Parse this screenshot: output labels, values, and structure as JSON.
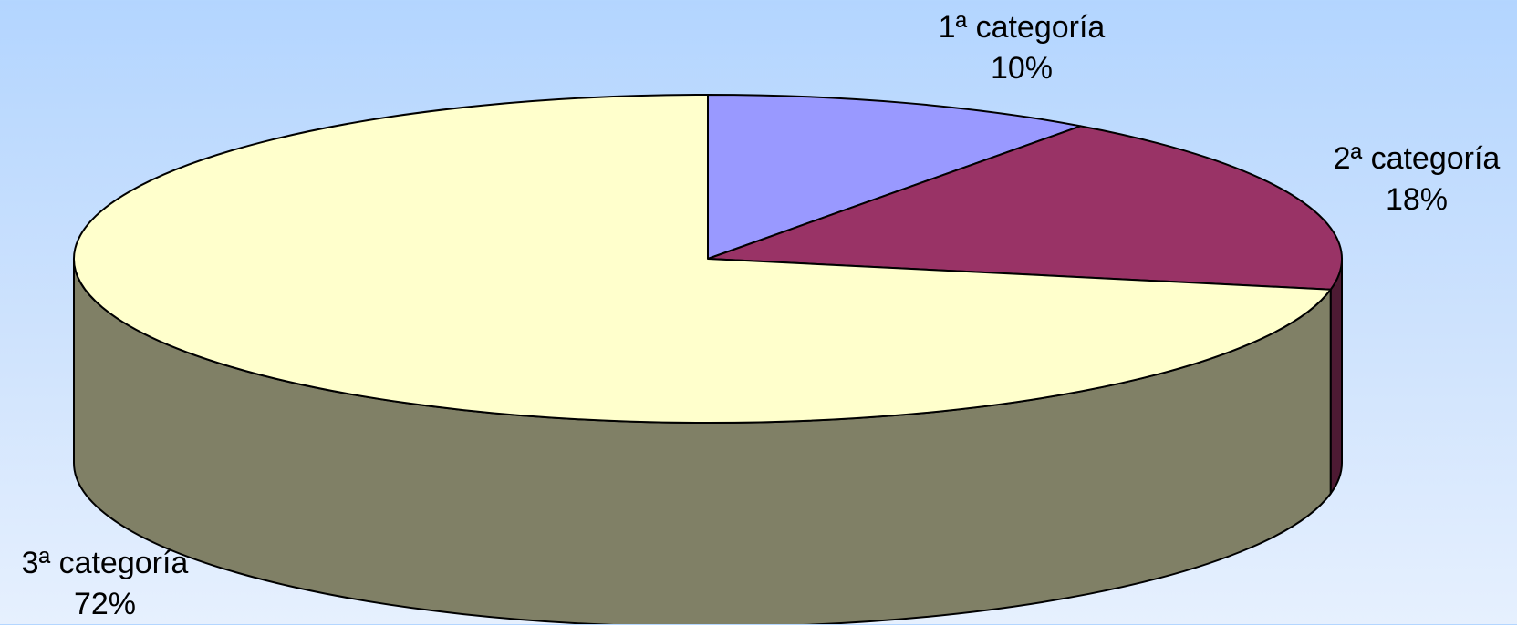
{
  "chart_data": {
    "type": "pie",
    "title": "",
    "three_d": true,
    "slices": [
      {
        "label": "1ª categoría",
        "value": 10,
        "value_label": "10%",
        "color": "#9999ff",
        "side_color": "#5a5ab0"
      },
      {
        "label": "2ª categoría",
        "value": 18,
        "value_label": "18%",
        "color": "#993366",
        "side_color": "#4d1a33"
      },
      {
        "label": "3ª categoría",
        "value": 72,
        "value_label": "72%",
        "color": "#ffffcc",
        "side_color": "#808066"
      }
    ],
    "start_angle": "12 o'clock",
    "direction": "clockwise"
  }
}
